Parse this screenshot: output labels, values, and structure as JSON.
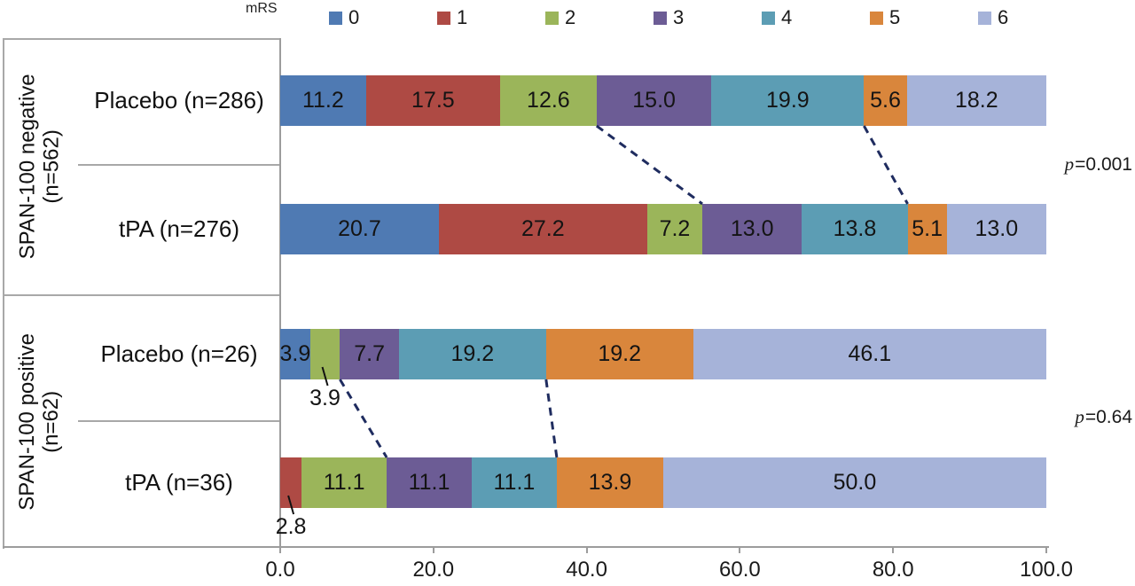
{
  "legend": {
    "title": "mRS",
    "items": [
      {
        "label": "0",
        "color": "#4F7AB3"
      },
      {
        "label": "1",
        "color": "#AE4A44"
      },
      {
        "label": "2",
        "color": "#9BB55A"
      },
      {
        "label": "3",
        "color": "#6C5C95"
      },
      {
        "label": "4",
        "color": "#5C9DB4"
      },
      {
        "label": "5",
        "color": "#D9863C"
      },
      {
        "label": "6",
        "color": "#A6B3D9"
      }
    ]
  },
  "groups": [
    {
      "label_line1": "SPAN-100 negative",
      "label_line2": "(n=562)",
      "p_prefix": "p",
      "p_value": "=0.001"
    },
    {
      "label_line1": "SPAN-100 positive",
      "label_line2": "(n=62)",
      "p_prefix": "p",
      "p_value": "=0.64"
    }
  ],
  "x_axis": {
    "values": [
      0,
      20,
      40,
      60,
      80,
      100
    ],
    "ticks": [
      "0.0",
      "20.0",
      "40.0",
      "60.0",
      "80.0",
      "100.0"
    ]
  },
  "chart_data": {
    "type": "bar",
    "orientation": "horizontal",
    "stacked": true,
    "title": "",
    "xlabel": "",
    "ylabel": "",
    "xlim": [
      0,
      100
    ],
    "x_ticks": [
      0,
      20,
      40,
      60,
      80,
      100
    ],
    "legend_title": "mRS",
    "categories": [
      "0",
      "1",
      "2",
      "3",
      "4",
      "5",
      "6"
    ],
    "series_colors": [
      "#4F7AB3",
      "#AE4A44",
      "#9BB55A",
      "#6C5C95",
      "#5C9DB4",
      "#D9863C",
      "#A6B3D9"
    ],
    "rows": [
      {
        "group": "SPAN-100 negative (n=562)",
        "label": "Placebo (n=286)",
        "values": [
          11.2,
          17.5,
          12.6,
          15.0,
          19.9,
          5.6,
          18.2
        ],
        "labels": [
          "11.2",
          "17.5",
          "12.6",
          "15.0",
          "19.9",
          "5.6",
          "18.2"
        ],
        "outside_label_indices": []
      },
      {
        "group": "SPAN-100 negative (n=562)",
        "label": "tPA (n=276)",
        "values": [
          20.7,
          27.2,
          7.2,
          13.0,
          13.8,
          5.1,
          13.0
        ],
        "labels": [
          "20.7",
          "27.2",
          "7.2",
          "13.0",
          "13.8",
          "5.1",
          "13.0"
        ],
        "outside_label_indices": []
      },
      {
        "group": "SPAN-100 positive (n=62)",
        "label": "Placebo (n=26)",
        "values": [
          3.9,
          0,
          3.9,
          7.7,
          19.2,
          19.2,
          46.1
        ],
        "labels": [
          "3.9",
          "",
          "3.9",
          "7.7",
          "19.2",
          "19.2",
          "46.1"
        ],
        "outside_label_indices": [
          2
        ]
      },
      {
        "group": "SPAN-100 positive (n=62)",
        "label": "tPA (n=36)",
        "values": [
          0,
          2.8,
          11.1,
          11.1,
          11.1,
          13.9,
          50.0
        ],
        "labels": [
          "",
          "2.8",
          "11.1",
          "11.1",
          "11.1",
          "13.9",
          "50.0"
        ],
        "outside_label_indices": [
          1
        ]
      }
    ],
    "connectors": [
      {
        "from_row": 0,
        "to_row": 1,
        "after_category_index": 2
      },
      {
        "from_row": 0,
        "to_row": 1,
        "after_category_index": 4
      },
      {
        "from_row": 2,
        "to_row": 3,
        "after_category_index": 2
      },
      {
        "from_row": 2,
        "to_row": 3,
        "after_category_index": 4
      }
    ],
    "annotations": [
      {
        "group": "SPAN-100 negative (n=562)",
        "text": "p=0.001"
      },
      {
        "group": "SPAN-100 positive (n=62)",
        "text": "p=0.64"
      }
    ]
  },
  "colors": {
    "connector_line": "#1F2C5F",
    "leader_line": "#111111",
    "frame_line": "#a8a8a8",
    "axis_line": "#9c9c9c"
  }
}
